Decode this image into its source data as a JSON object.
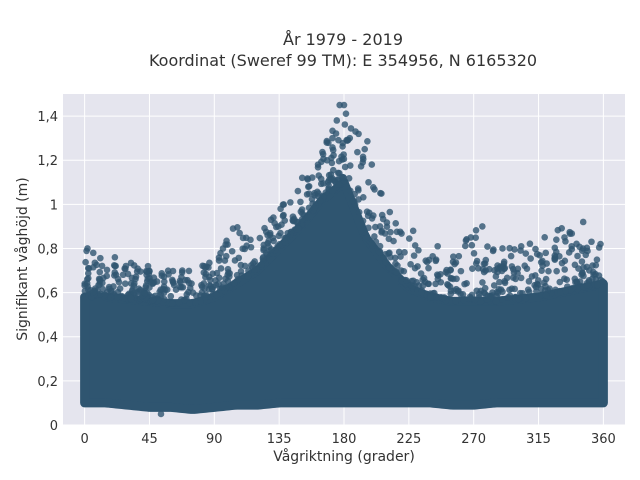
{
  "chart_data": {
    "type": "scatter",
    "title_line1": "År 1979 - 2019",
    "title_line2": "Koordinat (Sweref 99 TM): E 354956, N 6165320",
    "xlabel": "Vågriktning (grader)",
    "ylabel": "Signifikant våghöjd (m)",
    "xlim": [
      -15,
      375
    ],
    "ylim": [
      0,
      1.5
    ],
    "xticks": [
      0,
      45,
      90,
      135,
      180,
      225,
      270,
      315,
      360
    ],
    "xtick_labels": [
      "0",
      "45",
      "90",
      "135",
      "180",
      "225",
      "270",
      "315",
      "360"
    ],
    "yticks": [
      0,
      0.2,
      0.4,
      0.6,
      0.8,
      1.0,
      1.2,
      1.4
    ],
    "ytick_labels": [
      "0",
      "0,2",
      "0,4",
      "0,6",
      "0,8",
      "1",
      "1,2",
      "1,4"
    ],
    "grid": true,
    "marker_color": "#2f5570",
    "plot_bg": "#e5e5ee",
    "envelope": {
      "description": "dense point cloud; values below are the min and max signifikant våghöjd per direction bin",
      "x": [
        0,
        15,
        30,
        45,
        60,
        75,
        90,
        105,
        120,
        135,
        150,
        165,
        180,
        195,
        210,
        225,
        240,
        255,
        270,
        285,
        300,
        315,
        330,
        345,
        360
      ],
      "lower": [
        0.1,
        0.1,
        0.09,
        0.08,
        0.08,
        0.07,
        0.08,
        0.09,
        0.09,
        0.1,
        0.1,
        0.1,
        0.1,
        0.1,
        0.1,
        0.1,
        0.1,
        0.09,
        0.09,
        0.1,
        0.1,
        0.1,
        0.1,
        0.1,
        0.1
      ],
      "dense_upper": [
        0.58,
        0.58,
        0.57,
        0.56,
        0.55,
        0.55,
        0.58,
        0.64,
        0.7,
        0.8,
        0.9,
        1.02,
        1.1,
        0.85,
        0.72,
        0.62,
        0.58,
        0.56,
        0.56,
        0.56,
        0.57,
        0.58,
        0.6,
        0.62,
        0.64
      ],
      "max": [
        0.8,
        0.77,
        0.74,
        0.72,
        0.7,
        0.72,
        0.76,
        0.9,
        0.85,
        1.0,
        1.1,
        1.25,
        1.45,
        1.32,
        1.0,
        0.85,
        0.77,
        0.76,
        0.9,
        0.82,
        0.8,
        0.86,
        0.92,
        0.85,
        0.82
      ]
    },
    "outliers": [
      {
        "x": 2,
        "y": 0.8
      },
      {
        "x": 6,
        "y": 0.78
      },
      {
        "x": 21,
        "y": 0.76
      },
      {
        "x": 44,
        "y": 0.72
      },
      {
        "x": 53,
        "y": 0.05
      },
      {
        "x": 83,
        "y": 0.72
      },
      {
        "x": 103,
        "y": 0.89
      },
      {
        "x": 127,
        "y": 0.86
      },
      {
        "x": 131,
        "y": 0.94
      },
      {
        "x": 148,
        "y": 1.06
      },
      {
        "x": 151,
        "y": 1.12
      },
      {
        "x": 162,
        "y": 1.18
      },
      {
        "x": 168,
        "y": 1.28
      },
      {
        "x": 172,
        "y": 1.3
      },
      {
        "x": 175,
        "y": 1.38
      },
      {
        "x": 177,
        "y": 1.45
      },
      {
        "x": 180,
        "y": 1.45
      },
      {
        "x": 184,
        "y": 1.3
      },
      {
        "x": 188,
        "y": 1.33
      },
      {
        "x": 193,
        "y": 1.19
      },
      {
        "x": 197,
        "y": 1.1
      },
      {
        "x": 205,
        "y": 0.9
      },
      {
        "x": 228,
        "y": 0.88
      },
      {
        "x": 245,
        "y": 0.81
      },
      {
        "x": 268,
        "y": 0.85
      },
      {
        "x": 276,
        "y": 0.9
      },
      {
        "x": 290,
        "y": 0.8
      },
      {
        "x": 320,
        "y": 0.78
      },
      {
        "x": 333,
        "y": 0.85
      },
      {
        "x": 338,
        "y": 0.81
      },
      {
        "x": 346,
        "y": 0.92
      },
      {
        "x": 358,
        "y": 0.82
      }
    ]
  }
}
